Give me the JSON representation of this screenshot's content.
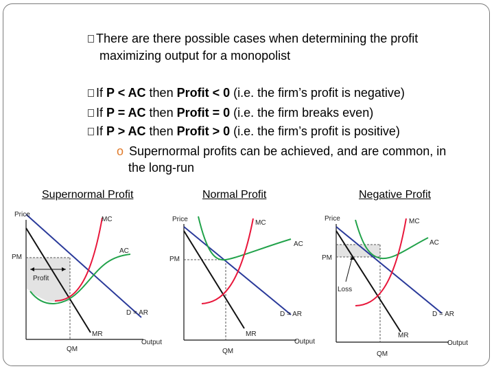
{
  "intro": {
    "line1": "There are there possible cases when determining the profit",
    "line2": "maximizing output for a monopolist"
  },
  "cases": [
    {
      "prefix": "If ",
      "cond": "P < AC",
      "mid": " then ",
      "result": "Profit < 0",
      "note": " (i.e. the firm’s profit is negative)"
    },
    {
      "prefix": "If ",
      "cond": "P = AC",
      "mid": " then ",
      "result": "Profit = 0",
      "note": " (i.e. the firm breaks even)"
    },
    {
      "prefix": "If ",
      "cond": "P > AC",
      "mid": " then ",
      "result": "Profit > 0",
      "note": " (i.e. the firm’s profit is positive)"
    }
  ],
  "sub_bullet": {
    "marker": "o",
    "line1": "Supernormal profits can be achieved, and are common, in",
    "line2": "the long-run"
  },
  "captions": [
    "Supernormal Profit",
    "Normal Profit",
    "Negative Profit"
  ],
  "graph_labels": {
    "price": "Price",
    "output": "Output",
    "pm": "PM",
    "qm": "QM",
    "mc": "MC",
    "ac": "AC",
    "demand": "D = AR",
    "mr": "MR",
    "profit": "Profit",
    "loss": "Loss"
  },
  "colors": {
    "mc": "#e8163a",
    "ac": "#21a24a",
    "demand": "#2a3a9a",
    "mr": "#111111",
    "accent": "#e07a2a"
  }
}
